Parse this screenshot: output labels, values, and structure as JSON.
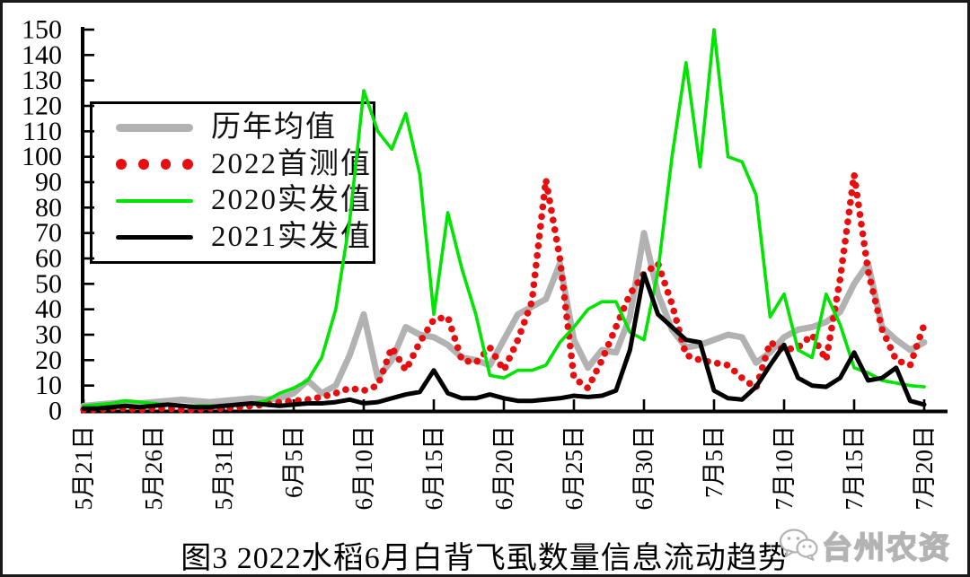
{
  "figure": {
    "title": "图3 2022水稻6月白背飞虱数量信息流动趋势",
    "watermark": {
      "text": "台州农资",
      "icon": "wechat-icon"
    },
    "frame_border_color": "#1a1a1a",
    "background_color": "#ffffff"
  },
  "legend": {
    "position": "top-left",
    "border_color": "#000000",
    "items": [
      {
        "label": "历年均值",
        "color": "#b2b2b2",
        "marker": "thick-line"
      },
      {
        "label": "2022首测值",
        "color": "#e60e0e",
        "marker": "dots"
      },
      {
        "label": "2020实发值",
        "color": "#00e400",
        "marker": "thin-line"
      },
      {
        "label": "2021实发值",
        "color": "#000000",
        "marker": "medium-line"
      }
    ]
  },
  "chart_data": {
    "type": "line",
    "title": "图3 2022水稻6月白背飞虱数量信息流动趋势",
    "xlabel": "",
    "ylabel": "",
    "ylim": [
      0,
      150
    ],
    "y_ticks": [
      0,
      10,
      20,
      30,
      40,
      50,
      60,
      70,
      80,
      90,
      100,
      110,
      120,
      130,
      140,
      150
    ],
    "grid": false,
    "x_tick_labels": [
      "5月21日",
      "5月26日",
      "5月31日",
      "6月5日",
      "6月10日",
      "6月15日",
      "6月20日",
      "6月25日",
      "6月30日",
      "7月5日",
      "7月10日",
      "7月15日",
      "7月20日"
    ],
    "x_tick_interval_days": 5,
    "x_start_label": "5月21日",
    "x_end_label": "7月20日",
    "points_per_series": 61,
    "series": [
      {
        "name": "历年均值",
        "color": "#b2b2b2",
        "style": "solid",
        "width": 7,
        "values": [
          2,
          2.5,
          3,
          3.5,
          3,
          3.5,
          4,
          4.5,
          4,
          3.5,
          4,
          4.5,
          5,
          4.5,
          5,
          7,
          12,
          7,
          10,
          22,
          38,
          13,
          20,
          33,
          30,
          29,
          26,
          21,
          20,
          18,
          28,
          38,
          41,
          44,
          58,
          28,
          17,
          24,
          23,
          37,
          70,
          46,
          32,
          25,
          26,
          28,
          30,
          29,
          19,
          23,
          29,
          32,
          33,
          35,
          39,
          50,
          58,
          33,
          28,
          24,
          27
        ]
      },
      {
        "name": "2022首测值",
        "color": "#e60e0e",
        "style": "dotted",
        "width": 7.6,
        "values": [
          0.5,
          0.5,
          1,
          1,
          0.5,
          1,
          1,
          0.5,
          0.5,
          1,
          1,
          1.5,
          2,
          2.5,
          3.5,
          4,
          4.5,
          5.5,
          7,
          9,
          8,
          10,
          25,
          16,
          27,
          36,
          37,
          20,
          19,
          25,
          16,
          28,
          43,
          91,
          60,
          13,
          9,
          20,
          33,
          46,
          54,
          58,
          42,
          22,
          20,
          19,
          18,
          13,
          9,
          27,
          24,
          25,
          30,
          20,
          52,
          93,
          55,
          32,
          20,
          18,
          34
        ]
      },
      {
        "name": "2020实发值",
        "color": "#00e400",
        "style": "solid",
        "width": 3.6,
        "values": [
          2,
          2.5,
          3,
          4,
          3.5,
          3,
          2.5,
          2,
          2,
          2,
          2,
          2.5,
          3,
          4,
          7,
          9,
          12,
          21,
          40,
          75,
          126,
          110,
          103,
          117,
          93,
          38,
          78,
          56,
          38,
          14,
          13,
          16,
          16,
          18,
          27,
          33,
          40,
          43,
          43,
          31,
          28,
          55,
          100,
          137,
          96,
          150,
          100,
          98,
          85,
          37,
          46,
          24,
          21,
          46,
          34,
          17,
          15,
          12,
          11,
          10,
          9.5
        ]
      },
      {
        "name": "2021实发值",
        "color": "#000000",
        "style": "solid",
        "width": 5,
        "values": [
          1,
          1,
          1.5,
          2,
          1.5,
          2,
          2.5,
          2,
          1.5,
          1.5,
          2,
          2.5,
          3,
          2.5,
          2,
          2.5,
          3,
          3,
          3.5,
          4.5,
          3,
          3.5,
          5,
          6.5,
          7.5,
          16,
          7,
          5,
          5,
          6.5,
          5,
          4,
          4,
          4.5,
          5,
          6,
          5.5,
          6,
          8,
          24,
          54,
          38,
          33,
          28,
          27,
          8,
          5,
          4.5,
          9.5,
          18,
          26,
          13,
          10,
          9.5,
          13,
          23,
          12,
          13,
          17,
          4,
          2.5
        ]
      }
    ]
  }
}
